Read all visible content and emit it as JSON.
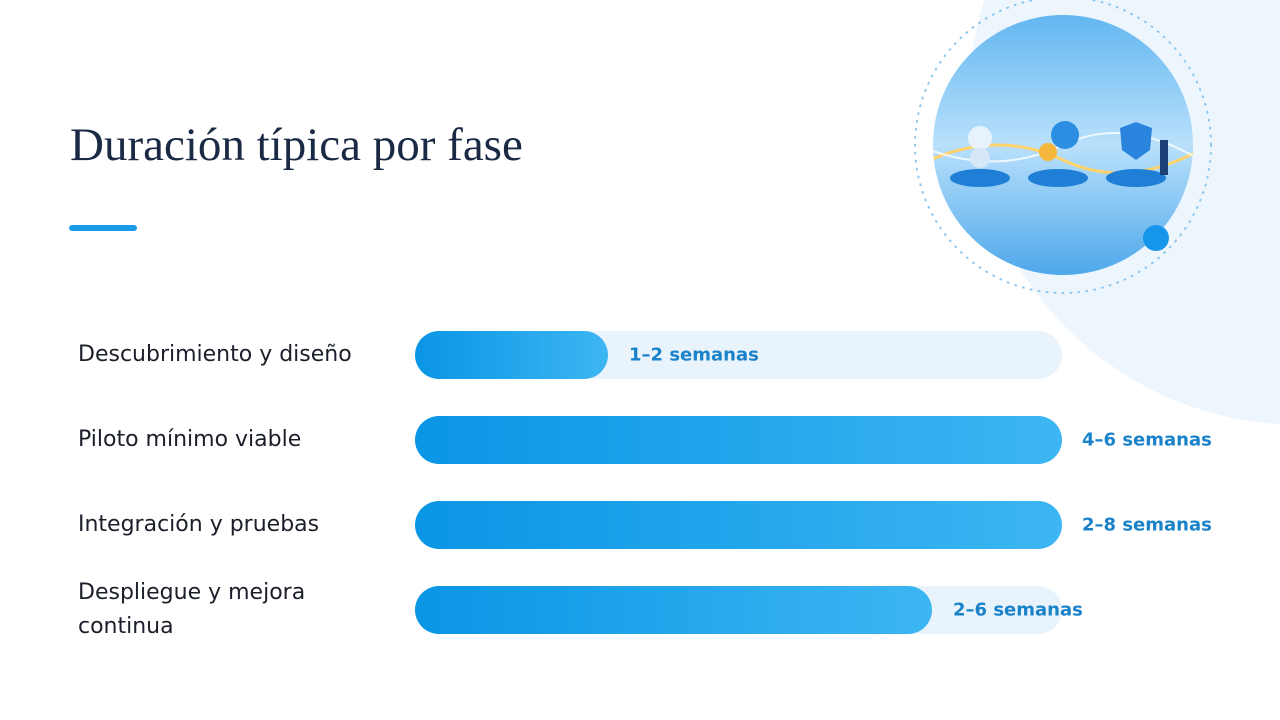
{
  "title": "Duración típica por fase",
  "phases": [
    {
      "label": "Descubrimiento y diseño",
      "duration": "1–2 semanas"
    },
    {
      "label": "Piloto mínimo viable",
      "duration": "4–6 semanas"
    },
    {
      "label": "Integración y pruebas",
      "duration": "2–8 semanas"
    },
    {
      "label": "Despliegue y mejora continua",
      "duration": "2–6 semanas"
    }
  ]
}
